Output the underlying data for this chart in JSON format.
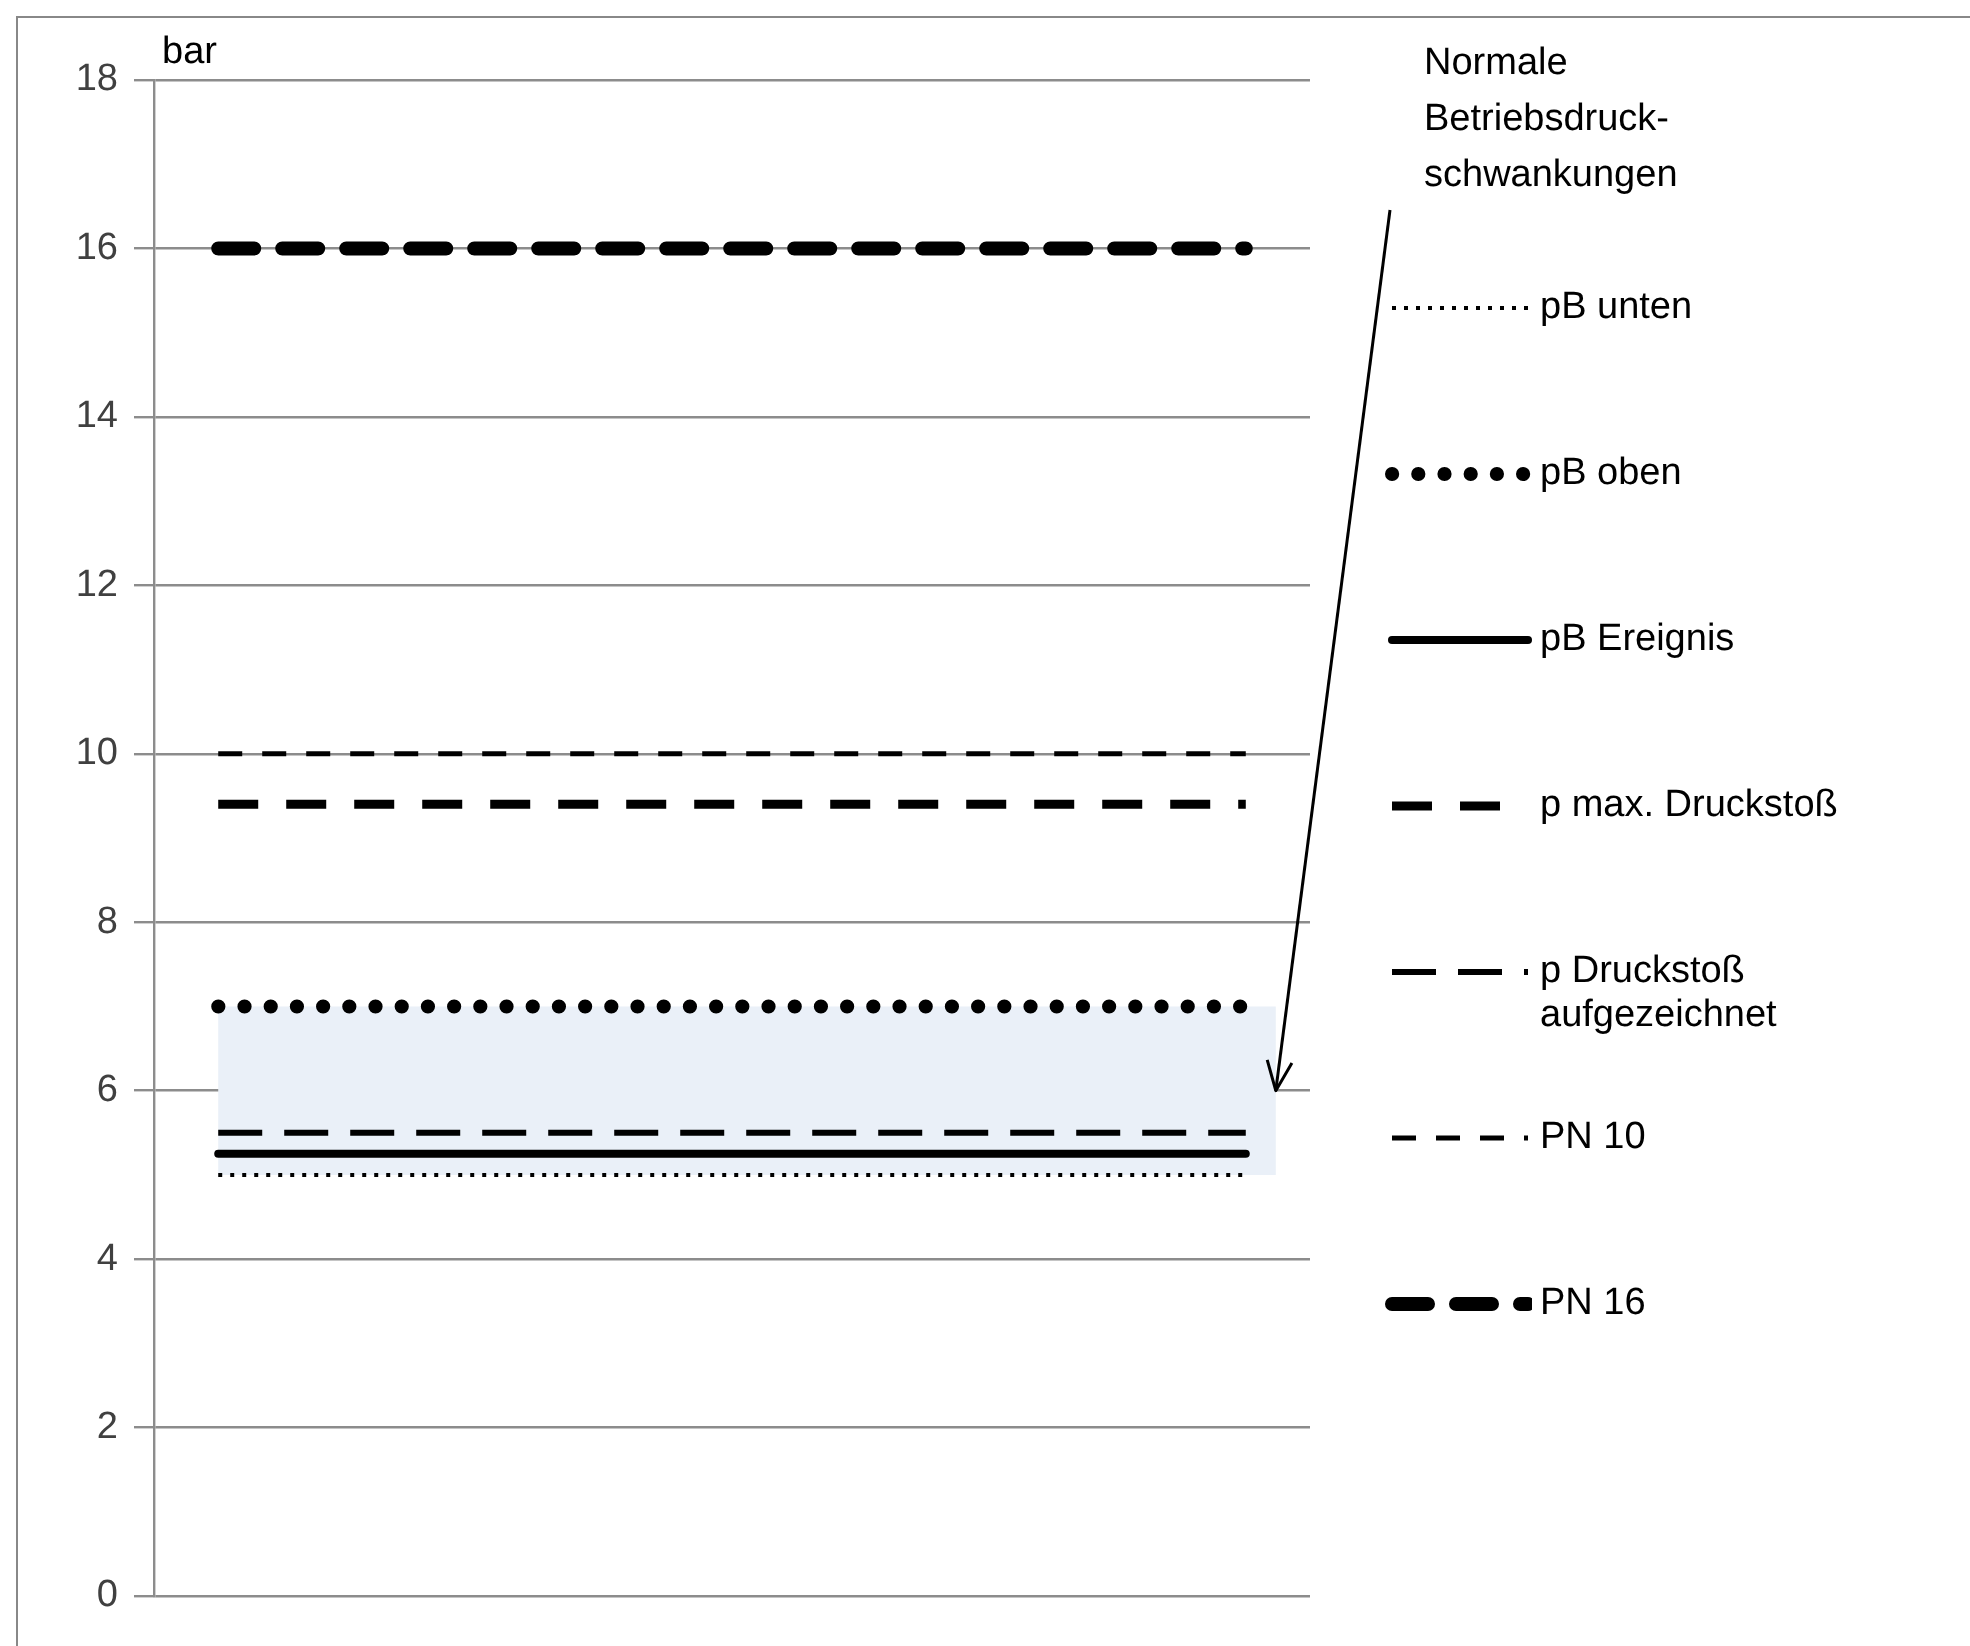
{
  "chart_data": {
    "type": "line",
    "ylabel": "bar",
    "categories": [
      null,
      null,
      null,
      null,
      null,
      null,
      null,
      null,
      null
    ],
    "ylim": [
      0,
      18
    ],
    "yticks": [
      0,
      2,
      4,
      6,
      8,
      10,
      12,
      14,
      16,
      18
    ],
    "grid": "y",
    "legend": "right",
    "marker": "none",
    "series": [
      {
        "name": "pB unten",
        "color": "#000000",
        "line_style": "dotted",
        "values": [
          5,
          5,
          5,
          5,
          5,
          5,
          5,
          5,
          5
        ]
      },
      {
        "name": "pB oben",
        "color": "#000000",
        "line_style": "dotted",
        "values": [
          7,
          7,
          7,
          7,
          7,
          7,
          7,
          7,
          7
        ]
      },
      {
        "name": "pB Ereignis",
        "color": "#000000",
        "line_style": "solid",
        "values": [
          5.25,
          5.25,
          5.25,
          5.25,
          5.25,
          5.25,
          5.25,
          5.25,
          5.25
        ]
      },
      {
        "name": "p max. Druckstoß",
        "color": "#000000",
        "line_style": "dashed",
        "values": [
          9.4,
          9.4,
          9.4,
          9.4,
          9.4,
          9.4,
          9.4,
          9.4,
          9.4
        ]
      },
      {
        "name": "p Druckstoß aufgezeichnet",
        "color": "#000000",
        "line_style": "dashed",
        "values": [
          5.5,
          5.5,
          5.5,
          5.5,
          5.5,
          5.5,
          5.5,
          5.5,
          5.5
        ]
      },
      {
        "name": "PN 10",
        "color": "#000000",
        "line_style": "dashed",
        "values": [
          10,
          10,
          10,
          10,
          10,
          10,
          10,
          10,
          10
        ]
      },
      {
        "name": "PN 16",
        "color": "#000000",
        "line_style": "dashed",
        "values": [
          16,
          16,
          16,
          16,
          16,
          16,
          16,
          16,
          16
        ]
      }
    ],
    "bands": [
      {
        "axis": "y",
        "from": 5,
        "to": 7,
        "color": "#eaf0f8"
      }
    ],
    "annotations": [
      "Normale Betriebsdruck-schwankungen"
    ]
  }
}
